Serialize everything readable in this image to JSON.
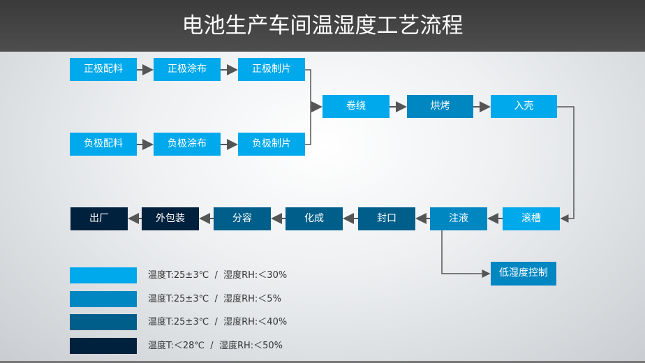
{
  "title": "电池生产车间温湿度工艺流程",
  "colors": {
    "level1": "#00A9EB",
    "level2": "#0087C2",
    "level3": "#005F8A",
    "level4": "#00213D"
  },
  "steps": {
    "pos_mix": "正极配料",
    "pos_coat": "正极涂布",
    "pos_cut": "正极制片",
    "neg_mix": "负极配料",
    "neg_coat": "负极涂布",
    "neg_cut": "负极制片",
    "wind": "卷绕",
    "bake": "烘烤",
    "case": "入壳",
    "groove": "滚槽",
    "inject": "注液",
    "seal": "封口",
    "form": "化成",
    "grade": "分容",
    "pack": "外包装",
    "ship": "出厂",
    "low_humidity": "低湿度控制"
  },
  "legend": [
    {
      "color": "#00A9EB",
      "text": "温度T:25±3℃  /  湿度RH:＜30%"
    },
    {
      "color": "#0087C2",
      "text": "温度T:25±3℃  /  湿度RH:＜5%"
    },
    {
      "color": "#005F8A",
      "text": "温度T:25±3℃  /  湿度RH:＜40%"
    },
    {
      "color": "#00213D",
      "text": "温度T:＜28℃  /  湿度RH:＜50%"
    }
  ]
}
